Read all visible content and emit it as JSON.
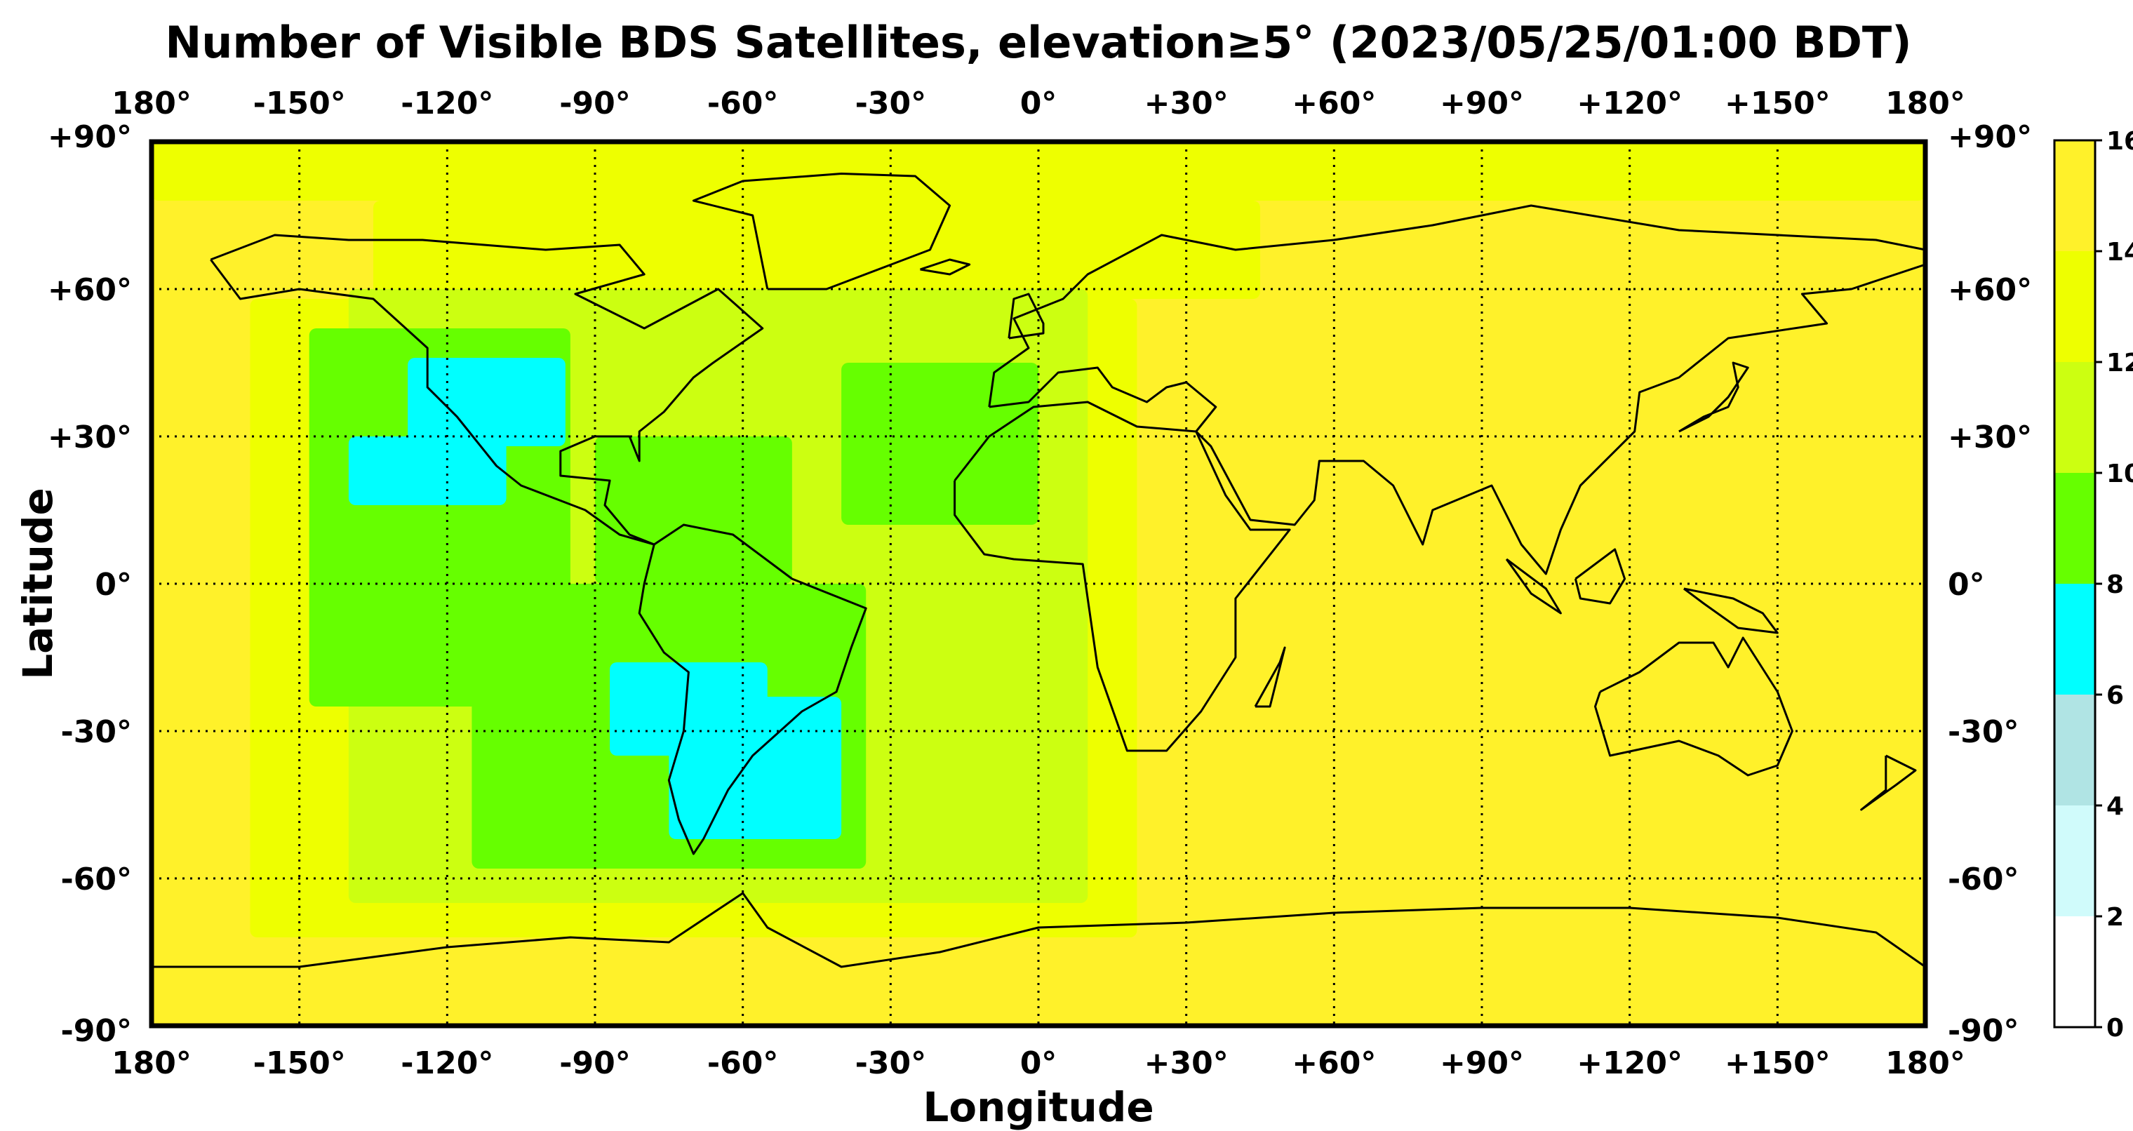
{
  "chart_data": {
    "type": "heatmap",
    "title": "Number of Visible BDS Satellites, elevation≥5° (2023/05/25/01:00 BDT)",
    "xlabel": "Longitude",
    "ylabel": "Latitude",
    "xlim": [
      -180,
      180
    ],
    "ylim": [
      -90,
      90
    ],
    "grid": true,
    "x_ticks": [
      -180,
      -150,
      -120,
      -90,
      -60,
      -30,
      0,
      30,
      60,
      90,
      120,
      150,
      180
    ],
    "x_tick_labels": [
      "180°",
      "-150°",
      "-120°",
      "-90°",
      "-60°",
      "-30°",
      "0°",
      "+30°",
      "+60°",
      "+90°",
      "+120°",
      "+150°",
      "180°"
    ],
    "y_ticks": [
      90,
      60,
      30,
      0,
      -30,
      -60,
      -90
    ],
    "y_tick_labels": [
      "+90°",
      "+60°",
      "+30°",
      "0°",
      "-30°",
      "-60°",
      "-90°"
    ],
    "colorbar": {
      "ticks": [
        0,
        2,
        4,
        6,
        8,
        10,
        12,
        14,
        16
      ],
      "tick_labels": [
        "0",
        "2",
        "4",
        "6",
        "8",
        "10",
        "12",
        "14",
        "16"
      ],
      "bands": [
        {
          "from": 0,
          "to": 2,
          "color": "#ffffff"
        },
        {
          "from": 2,
          "to": 4,
          "color": "#d0fbfb"
        },
        {
          "from": 4,
          "to": 6,
          "color": "#b0e4e4"
        },
        {
          "from": 6,
          "to": 8,
          "color": "#00ffff"
        },
        {
          "from": 8,
          "to": 10,
          "color": "#66ff00"
        },
        {
          "from": 10,
          "to": 12,
          "color": "#ccff11"
        },
        {
          "from": 12,
          "to": 14,
          "color": "#eeff00"
        },
        {
          "from": 14,
          "to": 16,
          "color": "#fff12a"
        }
      ]
    },
    "background_value": 15,
    "regions": [
      {
        "value": 13,
        "lon": [
          -180,
          180
        ],
        "lat": [
          78,
          90
        ]
      },
      {
        "value": 13,
        "lon": [
          -135,
          45
        ],
        "lat": [
          58,
          78
        ]
      },
      {
        "value": 13,
        "lon": [
          -160,
          20
        ],
        "lat": [
          -72,
          58
        ]
      },
      {
        "value": 11,
        "lon": [
          -140,
          10
        ],
        "lat": [
          -65,
          60
        ]
      },
      {
        "value": 9,
        "lon": [
          -148,
          -95
        ],
        "lat": [
          -25,
          52
        ]
      },
      {
        "value": 9,
        "lon": [
          -115,
          -35
        ],
        "lat": [
          -58,
          0
        ]
      },
      {
        "value": 9,
        "lon": [
          -90,
          -50
        ],
        "lat": [
          0,
          30
        ]
      },
      {
        "value": 9,
        "lon": [
          -40,
          0
        ],
        "lat": [
          12,
          45
        ]
      },
      {
        "value": 7,
        "lon": [
          -140,
          -108
        ],
        "lat": [
          16,
          30
        ]
      },
      {
        "value": 7,
        "lon": [
          -128,
          -96
        ],
        "lat": [
          28,
          46
        ]
      },
      {
        "value": 7,
        "lon": [
          -87,
          -55
        ],
        "lat": [
          -35,
          -16
        ]
      },
      {
        "value": 7,
        "lon": [
          -75,
          -40
        ],
        "lat": [
          -52,
          -23
        ]
      }
    ]
  }
}
